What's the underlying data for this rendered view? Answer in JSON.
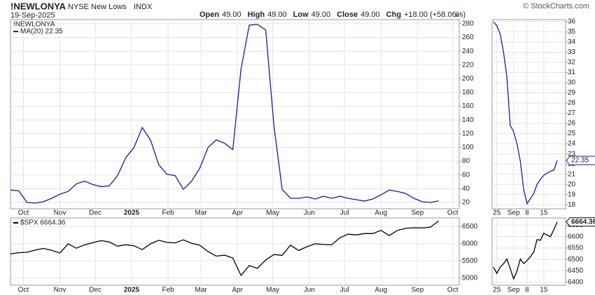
{
  "header": {
    "symbol": "!NEWLONYA",
    "name": "NYSE New Lows",
    "exchange": "INDX",
    "date": "19-Sep-2025",
    "quote": [
      {
        "label": "Open",
        "value": "49.00"
      },
      {
        "label": "High",
        "value": "49.00"
      },
      {
        "label": "Low",
        "value": "49.00"
      },
      {
        "label": "Close",
        "value": "49.00"
      },
      {
        "label": "Chg",
        "value": "+18.00 (+58.06%)"
      }
    ],
    "copyright": "© StockCharts.com"
  },
  "chart_data": [
    {
      "type": "line",
      "legend_title": "!NEWLONYA",
      "x": [
        0,
        1,
        2,
        3,
        4,
        5,
        6,
        7,
        8,
        9,
        10,
        11,
        12,
        13,
        14,
        15,
        16,
        17,
        18,
        19,
        20,
        21,
        22,
        23,
        24,
        25,
        26,
        27,
        28,
        29,
        30,
        31,
        32,
        33,
        34,
        35,
        36,
        37,
        38,
        39,
        40,
        41,
        42,
        43,
        44,
        45,
        46,
        47,
        48,
        49,
        50,
        51,
        52
      ],
      "series": [
        {
          "name": "MA(20) 22.35",
          "color": "#1c1c8f",
          "values": [
            38,
            37,
            20,
            19,
            21,
            26,
            32,
            36,
            47,
            51,
            46,
            43,
            44,
            59,
            85,
            100,
            129,
            111,
            75,
            61,
            59,
            39,
            51,
            70,
            100,
            111,
            106,
            97,
            214,
            278,
            279,
            271,
            131,
            39,
            26,
            26,
            28,
            25,
            29,
            26,
            29,
            26,
            24,
            22,
            25,
            31,
            38,
            36,
            33,
            26,
            21,
            20,
            22.35
          ]
        }
      ],
      "xlim": [
        0,
        54.5
      ],
      "xticks": [
        {
          "value": 1.57,
          "label": "Oct"
        },
        {
          "value": 6,
          "label": "Nov"
        },
        {
          "value": 10.29,
          "label": "Dec"
        },
        {
          "value": 14.71,
          "label": "2025"
        },
        {
          "value": 19.14,
          "label": "Feb"
        },
        {
          "value": 23.14,
          "label": "Mar"
        },
        {
          "value": 27.57,
          "label": "Apr"
        },
        {
          "value": 31.86,
          "label": "May"
        },
        {
          "value": 36.29,
          "label": "Jun"
        },
        {
          "value": 40.57,
          "label": "Jul"
        },
        {
          "value": 45,
          "label": "Aug"
        },
        {
          "value": 49.43,
          "label": "Sep"
        },
        {
          "value": 53.71,
          "label": "Oct"
        }
      ],
      "ylim": [
        10.7,
        286
      ],
      "yticks": [
        20,
        40,
        60,
        80,
        100,
        120,
        140,
        160,
        180,
        200,
        220,
        240,
        260,
        280
      ],
      "grid": true
    },
    {
      "type": "line",
      "x": [
        0,
        1,
        2,
        3,
        4,
        5,
        6,
        7,
        8,
        9,
        10,
        11,
        12,
        13,
        14,
        15,
        16,
        17,
        18,
        19,
        20,
        21,
        22,
        23,
        24,
        25,
        26,
        27,
        28,
        29,
        30,
        31,
        32,
        33,
        34,
        35,
        36,
        37,
        38,
        39,
        40,
        41,
        42,
        43,
        44,
        45,
        46,
        47,
        48,
        49,
        50,
        51,
        52
      ],
      "series": [
        {
          "name": "$SPX 6664.36",
          "color": "#000000",
          "values": [
            5702,
            5738,
            5751,
            5815,
            5864,
            5808,
            5728,
            5995,
            5870,
            5969,
            6032,
            6090,
            6051,
            5930,
            5970,
            5942,
            5827,
            5996,
            6101,
            6040,
            6026,
            6114,
            6013,
            5955,
            5770,
            5639,
            5667,
            5581,
            5074,
            5363,
            5282,
            5525,
            5686,
            5660,
            5958,
            5802,
            5912,
            6000,
            5977,
            5967,
            6173,
            6279,
            6259,
            6297,
            6297,
            6389,
            6238,
            6389,
            6449,
            6467,
            6460,
            6482,
            6664.36
          ]
        }
      ],
      "xlim": [
        0,
        54.5
      ],
      "xticks": [
        {
          "value": 1.57,
          "label": "Oct"
        },
        {
          "value": 6,
          "label": "Nov"
        },
        {
          "value": 10.29,
          "label": "Dec"
        },
        {
          "value": 14.71,
          "label": "2025"
        },
        {
          "value": 19.14,
          "label": "Feb"
        },
        {
          "value": 23.14,
          "label": "Mar"
        },
        {
          "value": 27.57,
          "label": "Apr"
        },
        {
          "value": 31.86,
          "label": "May"
        },
        {
          "value": 36.29,
          "label": "Jun"
        },
        {
          "value": 40.57,
          "label": "Jul"
        },
        {
          "value": 45,
          "label": "Aug"
        },
        {
          "value": 49.43,
          "label": "Sep"
        },
        {
          "value": 53.71,
          "label": "Oct"
        }
      ],
      "ylim": [
        4789,
        6754
      ],
      "yticks": [
        5000,
        5500,
        6000,
        6500
      ],
      "grid": true
    },
    {
      "type": "line",
      "x": [
        0,
        1,
        2,
        3,
        4,
        5,
        6,
        7,
        8,
        9,
        10,
        11,
        12,
        13,
        14,
        15,
        16,
        17,
        18,
        19
      ],
      "values": [
        36,
        35.6,
        34.8,
        33,
        30.6,
        25.8,
        25.2,
        24,
        22.3,
        19.5,
        18.1,
        18.6,
        19.1,
        20,
        20.5,
        20.9,
        21.1,
        21.3,
        21.4,
        22.35
      ],
      "color": "#1c1c8f",
      "price_label": "22.35",
      "xlim": [
        -0.4,
        21.5
      ],
      "xticks": [
        {
          "value": 1,
          "label": "25"
        },
        {
          "value": 6,
          "label": "Sep"
        },
        {
          "value": 10,
          "label": "8"
        },
        {
          "value": 15,
          "label": "15"
        }
      ],
      "ylim": [
        17.6,
        36.2
      ],
      "yticks": [
        18,
        19,
        20,
        21,
        22,
        23,
        24,
        25,
        26,
        27,
        28,
        29,
        30,
        31,
        32,
        33,
        34,
        35,
        36
      ],
      "grid": true
    },
    {
      "type": "line",
      "x": [
        0,
        1,
        2,
        3,
        4,
        5,
        6,
        7,
        8,
        9,
        10,
        11,
        12,
        13,
        14,
        15,
        16,
        17,
        18,
        19
      ],
      "values": [
        6467,
        6439,
        6466,
        6481,
        6502,
        6460,
        6415,
        6448,
        6502,
        6482,
        6495,
        6512,
        6532,
        6587,
        6584,
        6615,
        6607,
        6600,
        6631,
        6664.36
      ],
      "color": "#000000",
      "price_label": "6664.36",
      "xlim": [
        -0.4,
        21.5
      ],
      "xticks": [
        {
          "value": 1,
          "label": "25"
        },
        {
          "value": 6,
          "label": "Sep"
        },
        {
          "value": 10,
          "label": "8"
        },
        {
          "value": 15,
          "label": "15"
        }
      ],
      "ylim": [
        6387,
        6682
      ],
      "yticks": [
        6400,
        6450,
        6500,
        6550,
        6600,
        6650
      ],
      "grid": true
    }
  ]
}
